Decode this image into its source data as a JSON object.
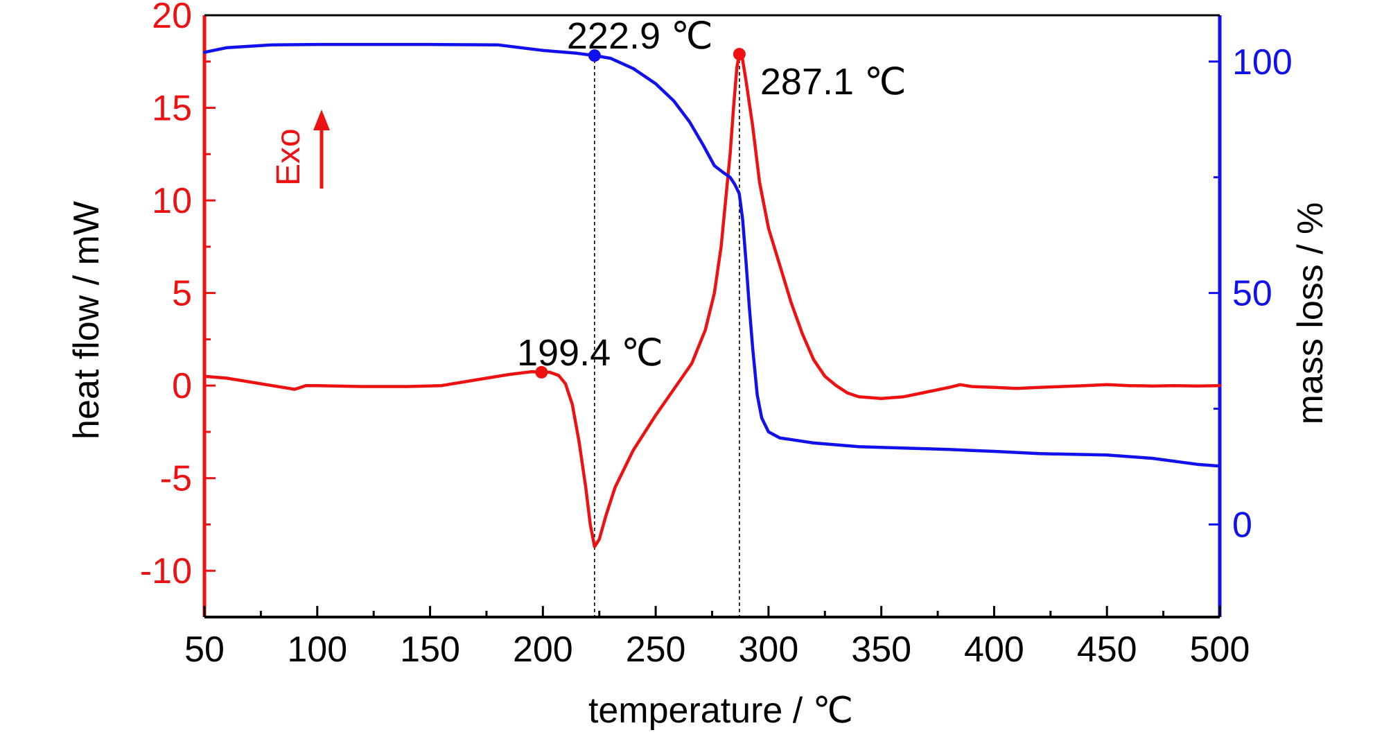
{
  "colors": {
    "heat_flow": "#ee1111",
    "mass_loss": "#1111ee",
    "frame": "#000000",
    "text": "#000000"
  },
  "chart_data": {
    "type": "line",
    "xlabel": "temperature / ℃",
    "ylabel_left": "heat flow / mW",
    "ylabel_right": "mass loss / %",
    "xlim": [
      50,
      500
    ],
    "ylim_left": [
      -12.5,
      20
    ],
    "ylim_right": [
      -20,
      110
    ],
    "x_ticks": [
      50,
      100,
      150,
      200,
      250,
      300,
      350,
      400,
      450,
      500
    ],
    "y_left_ticks": [
      -10,
      -5,
      0,
      5,
      10,
      15,
      20
    ],
    "y_right_ticks": [
      0,
      50,
      100
    ],
    "grid": false,
    "exo_label": "Exo",
    "series": [
      {
        "axis": "left",
        "color": "#ee1111",
        "points": [
          [
            50,
            0.5
          ],
          [
            60,
            0.4
          ],
          [
            70,
            0.2
          ],
          [
            80,
            0.0
          ],
          [
            90,
            -0.2
          ],
          [
            95,
            0.0
          ],
          [
            100,
            0.0
          ],
          [
            120,
            -0.05
          ],
          [
            140,
            -0.05
          ],
          [
            155,
            0.0
          ],
          [
            170,
            0.3
          ],
          [
            185,
            0.6
          ],
          [
            195,
            0.75
          ],
          [
            199.4,
            0.72
          ],
          [
            203,
            0.72
          ],
          [
            207,
            0.55
          ],
          [
            210,
            0.1
          ],
          [
            213,
            -1.0
          ],
          [
            216,
            -3.0
          ],
          [
            219,
            -5.5
          ],
          [
            221,
            -7.5
          ],
          [
            222.9,
            -8.7
          ],
          [
            225,
            -8.3
          ],
          [
            228,
            -7.0
          ],
          [
            232,
            -5.5
          ],
          [
            240,
            -3.5
          ],
          [
            250,
            -1.6
          ],
          [
            258,
            -0.2
          ],
          [
            266,
            1.2
          ],
          [
            272,
            3.0
          ],
          [
            276,
            5.0
          ],
          [
            279,
            7.5
          ],
          [
            281,
            10.0
          ],
          [
            283,
            12.5
          ],
          [
            284.5,
            15.0
          ],
          [
            286,
            17.2
          ],
          [
            287.1,
            17.9
          ],
          [
            288.5,
            17.6
          ],
          [
            290,
            16.5
          ],
          [
            293,
            14.0
          ],
          [
            296,
            11.0
          ],
          [
            300,
            8.5
          ],
          [
            305,
            6.5
          ],
          [
            310,
            4.5
          ],
          [
            315,
            2.8
          ],
          [
            320,
            1.4
          ],
          [
            325,
            0.5
          ],
          [
            330,
            0.0
          ],
          [
            335,
            -0.4
          ],
          [
            340,
            -0.6
          ],
          [
            350,
            -0.7
          ],
          [
            360,
            -0.6
          ],
          [
            370,
            -0.35
          ],
          [
            380,
            -0.1
          ],
          [
            385,
            0.05
          ],
          [
            390,
            -0.05
          ],
          [
            400,
            -0.1
          ],
          [
            410,
            -0.15
          ],
          [
            420,
            -0.1
          ],
          [
            430,
            -0.05
          ],
          [
            440,
            0.0
          ],
          [
            450,
            0.05
          ],
          [
            460,
            0.0
          ],
          [
            470,
            -0.02
          ],
          [
            480,
            0.0
          ],
          [
            490,
            -0.02
          ],
          [
            500,
            0.0
          ]
        ]
      },
      {
        "axis": "right",
        "color": "#1111ee",
        "points": [
          [
            50,
            102
          ],
          [
            60,
            103
          ],
          [
            80,
            103.6
          ],
          [
            100,
            103.7
          ],
          [
            150,
            103.7
          ],
          [
            180,
            103.6
          ],
          [
            200,
            102.4
          ],
          [
            215,
            101.8
          ],
          [
            222.9,
            101.3
          ],
          [
            230,
            100.7
          ],
          [
            240,
            98.5
          ],
          [
            250,
            95.2
          ],
          [
            258,
            91.5
          ],
          [
            265,
            87.0
          ],
          [
            271,
            82.0
          ],
          [
            276,
            77.5
          ],
          [
            280,
            76.0
          ],
          [
            283,
            75.0
          ],
          [
            285,
            73.5
          ],
          [
            287,
            71.5
          ],
          [
            288.5,
            66.0
          ],
          [
            290,
            57.0
          ],
          [
            291.5,
            47.0
          ],
          [
            293,
            38.0
          ],
          [
            295,
            28.0
          ],
          [
            297,
            23.0
          ],
          [
            300,
            20.0
          ],
          [
            305,
            18.7
          ],
          [
            320,
            17.6
          ],
          [
            340,
            16.8
          ],
          [
            360,
            16.5
          ],
          [
            380,
            16.2
          ],
          [
            400,
            15.8
          ],
          [
            420,
            15.3
          ],
          [
            450,
            15.0
          ],
          [
            470,
            14.3
          ],
          [
            490,
            13.0
          ],
          [
            500,
            12.6
          ]
        ]
      }
    ],
    "annotations": [
      {
        "label": "199.4 ℃",
        "x": 199.4,
        "y": 0.72,
        "axis": "left",
        "color": "#ee1111"
      },
      {
        "label": "222.9 ℃",
        "x": 222.9,
        "y": 101.3,
        "axis": "right",
        "color": "#1111ee"
      },
      {
        "label": "287.1 ℃",
        "x": 287.1,
        "y": 17.9,
        "axis": "left",
        "color": "#ee1111"
      }
    ],
    "dashed_guides": [
      222.9,
      287.1
    ]
  }
}
